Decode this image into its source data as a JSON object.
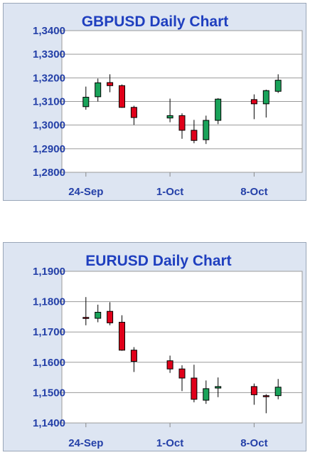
{
  "chart_data": [
    {
      "type": "candlestick",
      "title": "GBPUSD Daily Chart",
      "y_tick_labels": [
        "1,3400",
        "1,3300",
        "1,3200",
        "1,3100",
        "1,3000",
        "1,2900",
        "1,2800"
      ],
      "y_ticks": [
        1.34,
        1.33,
        1.32,
        1.31,
        1.3,
        1.29,
        1.28
      ],
      "ylim": [
        1.28,
        1.34
      ],
      "x_tick_labels": [
        "24-Sep",
        "1-Oct",
        "8-Oct"
      ],
      "x_tick_dates": [
        "2018-09-24",
        "2018-10-01",
        "2018-10-08"
      ],
      "xlim": [
        "2018-09-22",
        "2018-10-12"
      ],
      "grid": "horizontal",
      "up_color": "#1aa35a",
      "down_color": "#e0001a",
      "candles": [
        {
          "date": "2018-09-24",
          "open": 1.3078,
          "high": 1.3163,
          "low": 1.3065,
          "close": 1.3118
        },
        {
          "date": "2018-09-25",
          "open": 1.312,
          "high": 1.3197,
          "low": 1.31,
          "close": 1.3179
        },
        {
          "date": "2018-09-26",
          "open": 1.318,
          "high": 1.3215,
          "low": 1.3139,
          "close": 1.3167
        },
        {
          "date": "2018-09-27",
          "open": 1.3167,
          "high": 1.3172,
          "low": 1.3073,
          "close": 1.3075
        },
        {
          "date": "2018-09-28",
          "open": 1.3075,
          "high": 1.3082,
          "low": 1.3001,
          "close": 1.3032
        },
        {
          "date": "2018-10-01",
          "open": 1.303,
          "high": 1.3112,
          "low": 1.3012,
          "close": 1.304
        },
        {
          "date": "2018-10-02",
          "open": 1.304,
          "high": 1.305,
          "low": 1.2942,
          "close": 1.2978
        },
        {
          "date": "2018-10-03",
          "open": 1.2978,
          "high": 1.3022,
          "low": 1.2923,
          "close": 1.2935
        },
        {
          "date": "2018-10-04",
          "open": 1.2938,
          "high": 1.304,
          "low": 1.292,
          "close": 1.302
        },
        {
          "date": "2018-10-05",
          "open": 1.302,
          "high": 1.3114,
          "low": 1.3004,
          "close": 1.311
        },
        {
          "date": "2018-10-08",
          "open": 1.3108,
          "high": 1.313,
          "low": 1.3025,
          "close": 1.309
        },
        {
          "date": "2018-10-09",
          "open": 1.309,
          "high": 1.315,
          "low": 1.3032,
          "close": 1.3146
        },
        {
          "date": "2018-10-10",
          "open": 1.3143,
          "high": 1.3215,
          "low": 1.3136,
          "close": 1.319
        }
      ]
    },
    {
      "type": "candlestick",
      "title": "EURUSD Daily Chart",
      "y_tick_labels": [
        "1,1900",
        "1,1800",
        "1,1700",
        "1,1600",
        "1,1500",
        "1,1400"
      ],
      "y_ticks": [
        1.19,
        1.18,
        1.17,
        1.16,
        1.15,
        1.14
      ],
      "ylim": [
        1.14,
        1.19
      ],
      "x_tick_labels": [
        "24-Sep",
        "1-Oct",
        "8-Oct"
      ],
      "x_tick_dates": [
        "2018-09-24",
        "2018-10-01",
        "2018-10-08"
      ],
      "xlim": [
        "2018-09-22",
        "2018-10-12"
      ],
      "grid": "horizontal",
      "up_color": "#1aa35a",
      "down_color": "#e0001a",
      "candles": [
        {
          "date": "2018-09-24",
          "open": 1.1748,
          "high": 1.1815,
          "low": 1.1722,
          "close": 1.1746
        },
        {
          "date": "2018-09-25",
          "open": 1.1745,
          "high": 1.179,
          "low": 1.1732,
          "close": 1.1765
        },
        {
          "date": "2018-09-26",
          "open": 1.1768,
          "high": 1.1798,
          "low": 1.1722,
          "close": 1.173
        },
        {
          "date": "2018-09-27",
          "open": 1.1732,
          "high": 1.1755,
          "low": 1.1638,
          "close": 1.164
        },
        {
          "date": "2018-09-28",
          "open": 1.164,
          "high": 1.165,
          "low": 1.1568,
          "close": 1.1603
        },
        {
          "date": "2018-10-01",
          "open": 1.1605,
          "high": 1.1622,
          "low": 1.1565,
          "close": 1.1578
        },
        {
          "date": "2018-10-02",
          "open": 1.1578,
          "high": 1.159,
          "low": 1.1505,
          "close": 1.1548
        },
        {
          "date": "2018-10-03",
          "open": 1.1548,
          "high": 1.1592,
          "low": 1.1468,
          "close": 1.1478
        },
        {
          "date": "2018-10-04",
          "open": 1.1475,
          "high": 1.154,
          "low": 1.1463,
          "close": 1.1513
        },
        {
          "date": "2018-10-05",
          "open": 1.1515,
          "high": 1.155,
          "low": 1.1485,
          "close": 1.152
        },
        {
          "date": "2018-10-08",
          "open": 1.152,
          "high": 1.153,
          "low": 1.146,
          "close": 1.1493
        },
        {
          "date": "2018-10-09",
          "open": 1.149,
          "high": 1.1495,
          "low": 1.1432,
          "close": 1.1487
        },
        {
          "date": "2018-10-10",
          "open": 1.149,
          "high": 1.1545,
          "low": 1.1478,
          "close": 1.1518
        }
      ]
    }
  ]
}
